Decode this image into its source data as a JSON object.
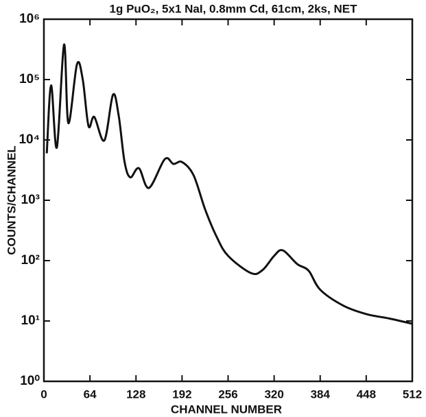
{
  "chart_data": {
    "type": "line",
    "title": "1g PuO₂, 5x1 NaI, 0.8mm Cd, 61cm, 2ks, NET",
    "x_label": "CHANNEL NUMBER",
    "y_label": "COUNTS/CHANNEL",
    "log_y": true,
    "color": "#111111",
    "x": [
      4,
      10,
      18,
      28,
      34,
      46,
      54,
      62,
      70,
      84,
      96,
      104,
      112,
      120,
      132,
      146,
      168,
      180,
      192,
      208,
      224,
      240,
      256,
      288,
      304,
      320,
      332,
      352,
      368,
      384,
      416,
      448,
      480,
      512
    ],
    "values": [
      6000,
      80000,
      7500,
      380000,
      19000,
      180000,
      100000,
      17000,
      24000,
      9800,
      56000,
      25000,
      4400,
      2400,
      3400,
      1600,
      4800,
      4000,
      4300,
      2600,
      710,
      250,
      120,
      62,
      70,
      120,
      148,
      88,
      68,
      33,
      18,
      13,
      11,
      9
    ],
    "xlim": [
      0,
      512
    ],
    "xticks": [
      0,
      64,
      128,
      192,
      256,
      320,
      384,
      448,
      512
    ],
    "ylim": [
      1,
      1000000
    ],
    "yticks": [
      {
        "value": 1,
        "label": "10⁰"
      },
      {
        "value": 10,
        "label": "10¹"
      },
      {
        "value": 100,
        "label": "10²"
      },
      {
        "value": 1000,
        "label": "10³"
      },
      {
        "value": 10000,
        "label": "10⁴"
      },
      {
        "value": 100000,
        "label": "10⁵"
      },
      {
        "value": 1000000,
        "label": "10⁶"
      }
    ]
  }
}
